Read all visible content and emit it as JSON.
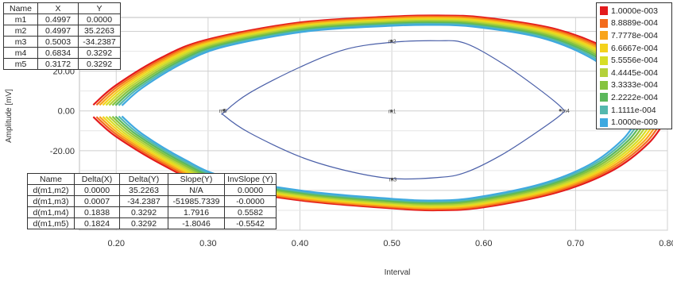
{
  "chart_data": {
    "type": "line",
    "xlabel": "Interval",
    "ylabel": "Amplitude [mV]",
    "xlim": [
      0.16,
      0.8
    ],
    "ylim": [
      -60,
      47
    ],
    "x_ticks": [
      "0.20",
      "0.30",
      "0.40",
      "0.50",
      "0.60",
      "0.70",
      "0.80"
    ],
    "y_ticks": [
      "20.00",
      "0.00",
      "-20.00"
    ],
    "grid": true,
    "contour_colors": [
      "#e31a1c",
      "#f36b1c",
      "#f8a41c",
      "#f4d21c",
      "#d7de26",
      "#b4d13a",
      "#86c33f",
      "#5cb85c",
      "#54b8ae",
      "#3fa9e0"
    ],
    "eye_outer": {
      "upper": [
        [
          0.175,
          3
        ],
        [
          0.2,
          13
        ],
        [
          0.25,
          27
        ],
        [
          0.3,
          36
        ],
        [
          0.4,
          44.5
        ],
        [
          0.5,
          47.5
        ],
        [
          0.55,
          48
        ],
        [
          0.6,
          47
        ],
        [
          0.68,
          41
        ],
        [
          0.74,
          30
        ],
        [
          0.78,
          16
        ],
        [
          0.8,
          3
        ]
      ],
      "lower": [
        [
          0.175,
          -3
        ],
        [
          0.2,
          -13
        ],
        [
          0.25,
          -27
        ],
        [
          0.3,
          -37
        ],
        [
          0.4,
          -45
        ],
        [
          0.5,
          -49
        ],
        [
          0.55,
          -50
        ],
        [
          0.6,
          -48.5
        ],
        [
          0.68,
          -41
        ],
        [
          0.74,
          -30
        ],
        [
          0.78,
          -16
        ],
        [
          0.8,
          -3
        ]
      ]
    },
    "inner_contour": {
      "points": [
        [
          0.318,
          -0.5
        ],
        [
          0.345,
          9
        ],
        [
          0.4,
          22
        ],
        [
          0.45,
          31
        ],
        [
          0.5,
          34.5
        ],
        [
          0.55,
          35.3
        ],
        [
          0.58,
          34
        ],
        [
          0.62,
          24
        ],
        [
          0.66,
          11
        ],
        [
          0.685,
          1.5
        ],
        [
          0.685,
          -1.5
        ],
        [
          0.66,
          -10
        ],
        [
          0.62,
          -22
        ],
        [
          0.58,
          -31
        ],
        [
          0.55,
          -33.5
        ],
        [
          0.5,
          -34
        ],
        [
          0.45,
          -30
        ],
        [
          0.4,
          -23
        ],
        [
          0.345,
          -11
        ],
        [
          0.318,
          -2.5
        ]
      ]
    },
    "markers": [
      {
        "name": "m1",
        "x": 0.4997,
        "y": 0.0
      },
      {
        "name": "m2",
        "x": 0.4997,
        "y": 35.2263
      },
      {
        "name": "m3",
        "x": 0.5003,
        "y": -34.2387
      },
      {
        "name": "m4",
        "x": 0.6834,
        "y": 0.3292
      },
      {
        "name": "m5",
        "x": 0.3172,
        "y": 0.3292
      }
    ]
  },
  "marker_table": {
    "headers": [
      "Name",
      "X",
      "Y"
    ],
    "rows": [
      [
        "m1",
        "0.4997",
        "0.0000"
      ],
      [
        "m2",
        "0.4997",
        "35.2263"
      ],
      [
        "m3",
        "0.5003",
        "-34.2387"
      ],
      [
        "m4",
        "0.6834",
        "0.3292"
      ],
      [
        "m5",
        "0.3172",
        "0.3292"
      ]
    ]
  },
  "delta_table": {
    "headers": [
      "Name",
      "Delta(X)",
      "Delta(Y)",
      "Slope(Y)",
      "InvSlope (Y)"
    ],
    "rows": [
      [
        "d(m1,m2)",
        "0.0000",
        "35.2263",
        "N/A",
        "0.0000"
      ],
      [
        "d(m1,m3)",
        "0.0007",
        "-34.2387",
        "-51985.7339",
        "-0.0000"
      ],
      [
        "d(m1,m4)",
        "0.1838",
        "0.3292",
        "1.7916",
        "0.5582"
      ],
      [
        "d(m1,m5)",
        "0.1824",
        "0.3292",
        "-1.8046",
        "-0.5542"
      ]
    ]
  },
  "legend": {
    "items": [
      {
        "label": "1.0000e-003",
        "color": "#e31a1c"
      },
      {
        "label": "8.8889e-004",
        "color": "#f36b1c"
      },
      {
        "label": "7.7778e-004",
        "color": "#f8a41c"
      },
      {
        "label": "6.6667e-004",
        "color": "#f4d21c"
      },
      {
        "label": "5.5556e-004",
        "color": "#d7de26"
      },
      {
        "label": "4.4445e-004",
        "color": "#b4d13a"
      },
      {
        "label": "3.3333e-004",
        "color": "#86c33f"
      },
      {
        "label": "2.2222e-004",
        "color": "#5cb85c"
      },
      {
        "label": "1.1111e-004",
        "color": "#54b8ae"
      },
      {
        "label": "1.0000e-009",
        "color": "#3fa9e0"
      }
    ]
  }
}
